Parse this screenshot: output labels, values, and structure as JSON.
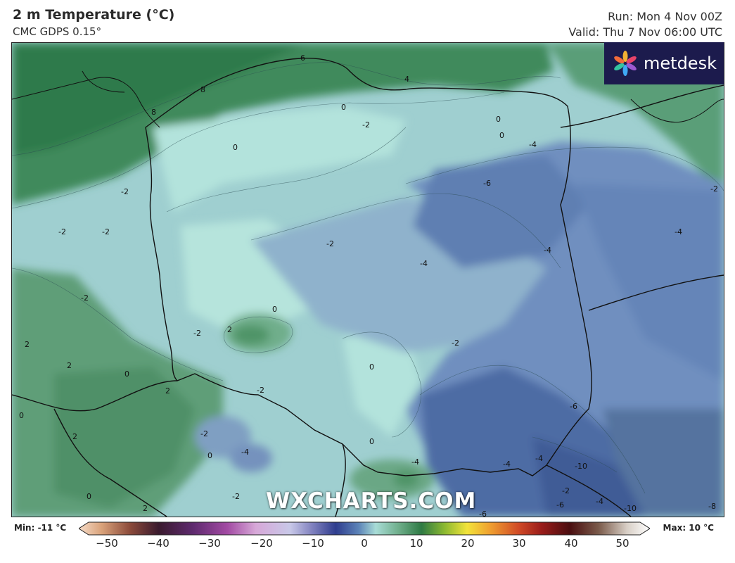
{
  "header": {
    "title": "2 m Temperature (°C)",
    "model": "CMC GDPS 0.15°",
    "run": "Run: Mon 4 Nov 00Z",
    "valid": "Valid: Thu 7 Nov 06:00 UTC"
  },
  "brand": {
    "name": "metdesk",
    "icon": "flower-logo-icon"
  },
  "watermark": "WXCHARTS.COM",
  "scale": {
    "min_label": "Min: -11 °C",
    "max_label": "Max: 10 °C",
    "ticks": [
      "−50",
      "−40",
      "−30",
      "−20",
      "−10",
      "0",
      "10",
      "20",
      "30",
      "40",
      "50"
    ]
  },
  "contour_labels": [
    "6",
    "4",
    "8",
    "8",
    "0",
    "0",
    "-2",
    "0",
    "0",
    "-4",
    "-6",
    "-2",
    "-2",
    "-2",
    "-2",
    "-4",
    "-4",
    "-2",
    "-2",
    "-4",
    "0",
    "2",
    "-2",
    "-2",
    "0",
    "2",
    "2",
    "0",
    "2",
    "0",
    "-2",
    "-2",
    "0",
    "-4",
    "0",
    "-4",
    "-4",
    "-4",
    "-10",
    "-6",
    "-2",
    "-6",
    "-4",
    "-10",
    "-8",
    "2",
    "2",
    "0",
    "-2",
    "-6"
  ],
  "colors": {
    "brand_bg": "#1c1b4d",
    "cold_deep": "#4f6fa6",
    "cold": "#6f8fbf",
    "cool": "#8fb3cc",
    "near_zero": "#a8dcd6",
    "mild": "#6fae8b",
    "warm": "#3f8a5c"
  }
}
